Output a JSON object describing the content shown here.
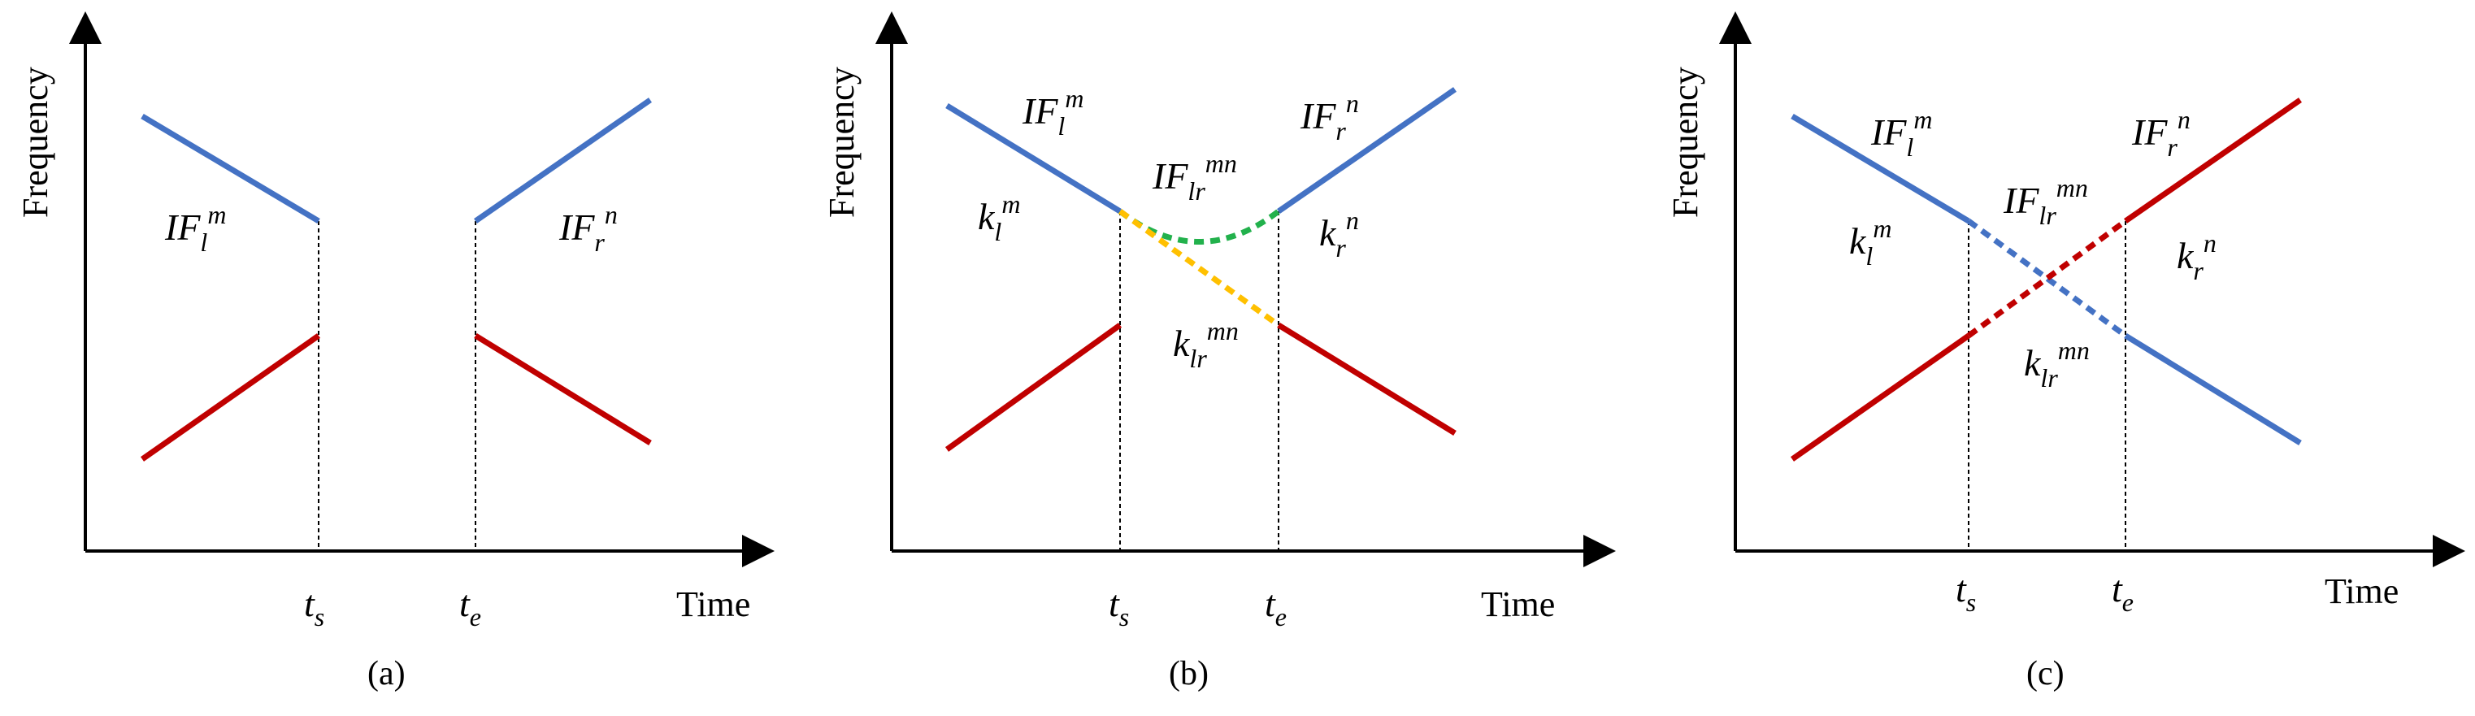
{
  "axis": {
    "x_label": "Time",
    "y_label": "Frequency"
  },
  "colors": {
    "blue": "#4472C4",
    "red": "#C00000",
    "green": "#22B14C",
    "orange": "#FFC000",
    "axis": "#000000"
  },
  "time_marks": {
    "ts": "t",
    "ts_sub": "s",
    "te": "t",
    "te_sub": "e"
  },
  "panels": [
    {
      "caption": "(a)",
      "labels": {
        "if_left_base": "IF",
        "if_left_sub": "l",
        "if_left_sup": "m",
        "if_right_base": "IF",
        "if_right_sub": "r",
        "if_right_sup": "n"
      }
    },
    {
      "caption": "(b)",
      "labels": {
        "if_left_base": "IF",
        "if_left_sub": "l",
        "if_left_sup": "m",
        "if_right_base": "IF",
        "if_right_sub": "r",
        "if_right_sup": "n",
        "if_mid_base": "IF",
        "if_mid_sub": "lr",
        "if_mid_sup": "mn",
        "k_left_base": "k",
        "k_left_sub": "l",
        "k_left_sup": "m",
        "k_right_base": "k",
        "k_right_sub": "r",
        "k_right_sup": "n",
        "k_mid_base": "k",
        "k_mid_sub": "lr",
        "k_mid_sup": "mn"
      }
    },
    {
      "caption": "(c)",
      "labels": {
        "if_left_base": "IF",
        "if_left_sub": "l",
        "if_left_sup": "m",
        "if_right_base": "IF",
        "if_right_sub": "r",
        "if_right_sup": "n",
        "if_mid_base": "IF",
        "if_mid_sub": "lr",
        "if_mid_sup": "mn",
        "k_left_base": "k",
        "k_left_sub": "l",
        "k_left_sup": "m",
        "k_right_base": "k",
        "k_right_sub": "r",
        "k_right_sup": "n",
        "k_mid_base": "k",
        "k_mid_sub": "lr",
        "k_mid_sup": "mn"
      }
    }
  ]
}
